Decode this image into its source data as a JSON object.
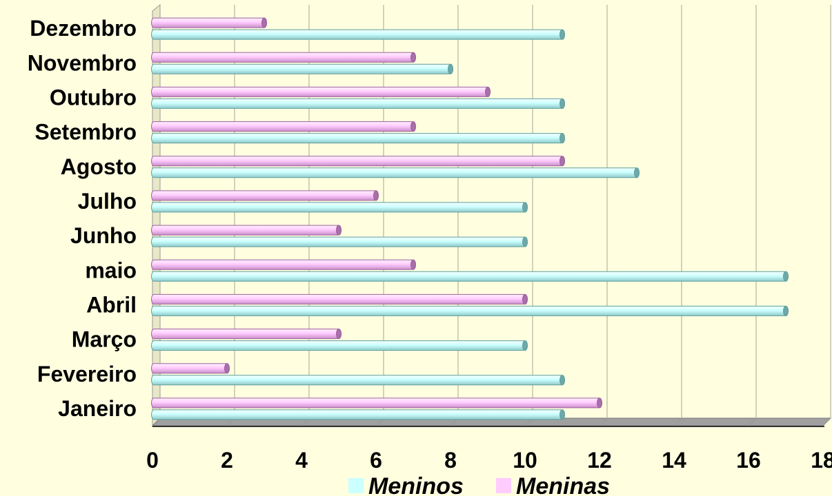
{
  "chart_data": {
    "type": "bar",
    "orientation": "horizontal",
    "categories": [
      "Janeiro",
      "Fevereiro",
      "Março",
      "Abril",
      "maio",
      "Junho",
      "Julho",
      "Agosto",
      "Setembro",
      "Outubro",
      "Novembro",
      "Dezembro"
    ],
    "series": [
      {
        "name": "Meninos",
        "color": "#CCFFFF",
        "values": [
          11,
          11,
          10,
          17,
          17,
          10,
          10,
          13,
          11,
          11,
          8,
          11
        ]
      },
      {
        "name": "Meninas",
        "color": "#FFCCFF",
        "values": [
          12,
          2,
          5,
          10,
          7,
          5,
          6,
          11,
          7,
          9,
          7,
          3
        ]
      }
    ],
    "xlim": [
      0,
      18
    ],
    "x_ticks": [
      "0",
      "2",
      "4",
      "6",
      "8",
      "10",
      "12",
      "14",
      "16",
      "18"
    ],
    "grid": "vertical",
    "legend_position": "bottom",
    "background_color": "#FFFFE0",
    "title": "",
    "xlabel": "",
    "ylabel": ""
  }
}
